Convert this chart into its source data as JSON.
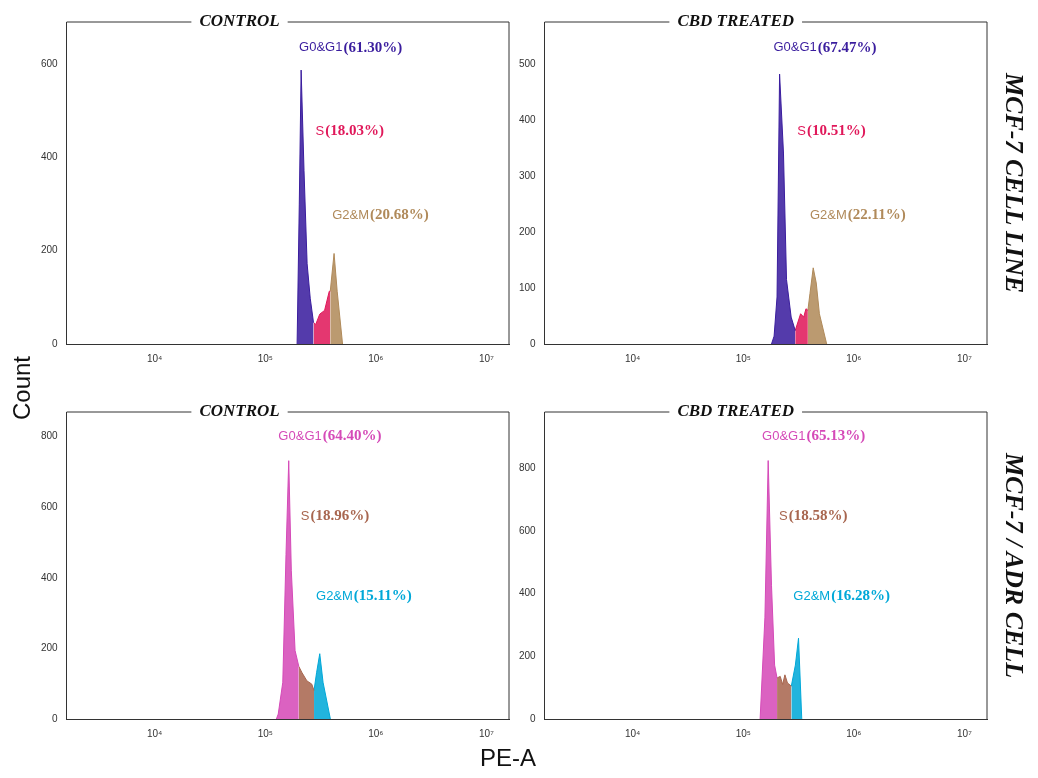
{
  "chart_data": [
    {
      "type": "area",
      "title": "CONTROL",
      "ylabel": "Count",
      "log": "x",
      "xlim": [
        1600,
        16000000
      ],
      "xticks": [
        {
          "value": 10000,
          "label": "10⁴"
        },
        {
          "value": 100000,
          "label": "10⁵"
        },
        {
          "value": 1000000,
          "label": "10⁶"
        },
        {
          "value": 10000000,
          "label": "10⁷"
        }
      ],
      "ylim": [
        0,
        690
      ],
      "yticks": [
        0,
        200,
        400,
        600
      ],
      "series": [
        {
          "name": "G0&G1",
          "color": "#3a1d9e",
          "x": [
            194000,
            203000,
            211000,
            224000,
            239000,
            255000,
            273000
          ],
          "values": [
            0,
            298,
            587,
            372,
            172,
            98,
            46
          ]
        },
        {
          "name": "S",
          "color": "#e0185a",
          "x": [
            273000,
            286000,
            311000,
            344000,
            379000,
            387000
          ],
          "values": [
            46,
            42,
            64,
            72,
            113,
            113
          ]
        },
        {
          "name": "G2&M",
          "color": "#b08a5a",
          "x": [
            387000,
            419000,
            447000,
            500000
          ],
          "values": [
            113,
            194,
            113,
            0
          ]
        }
      ],
      "annotations": [
        "(61.30%)",
        "(18.03%)",
        "(20.68%)"
      ]
    },
    {
      "type": "area",
      "title": "CBD TREATED",
      "y2label": "MCF-7 CELL LINE",
      "log": "x",
      "xlim": [
        1600,
        16000000
      ],
      "xticks": [
        {
          "value": 10000,
          "label": "10⁴"
        },
        {
          "value": 100000,
          "label": "10⁵"
        },
        {
          "value": 1000000,
          "label": "10⁶"
        },
        {
          "value": 10000000,
          "label": "10⁷"
        }
      ],
      "ylim": [
        0,
        575
      ],
      "yticks": [
        0,
        100,
        200,
        300,
        400,
        500
      ],
      "series": [
        {
          "name": "G0&G1",
          "color": "#3a1d9e",
          "x": [
            180000,
            190000,
            202000,
            213000,
            231000,
            246000,
            271000,
            295000
          ],
          "values": [
            0,
            14,
            84,
            482,
            341,
            115,
            48,
            24
          ]
        },
        {
          "name": "S",
          "color": "#e0185a",
          "x": [
            295000,
            330000,
            352000,
            369000,
            384000
          ],
          "values": [
            24,
            54,
            48,
            63,
            60
          ]
        },
        {
          "name": "G2&M",
          "color": "#b08a5a",
          "x": [
            384000,
            401000,
            429000,
            457000,
            488000,
            568000
          ],
          "values": [
            60,
            90,
            136,
            109,
            54,
            0
          ]
        }
      ],
      "annotations": [
        "(67.47%)",
        "(10.51%)",
        "(22.11%)"
      ]
    },
    {
      "type": "area",
      "title": "CONTROL",
      "xlabel": "PE-A",
      "log": "x",
      "xlim": [
        1600,
        16000000
      ],
      "xticks": [
        {
          "value": 10000,
          "label": "10⁴"
        },
        {
          "value": 100000,
          "label": "10⁵"
        },
        {
          "value": 1000000,
          "label": "10⁶"
        },
        {
          "value": 10000000,
          "label": "10⁷"
        }
      ],
      "ylim": [
        0,
        870
      ],
      "yticks": [
        0,
        200,
        400,
        600,
        800
      ],
      "series": [
        {
          "name": "G0&G1",
          "color": "#d54ab8",
          "x": [
            126000,
            131000,
            144000,
            154000,
            163000,
            172000,
            186000,
            201000
          ],
          "values": [
            0,
            14,
            104,
            466,
            732,
            420,
            194,
            149
          ]
        },
        {
          "name": "S",
          "color": "#a8664f",
          "x": [
            201000,
            215000,
            238000,
            263000,
            276000
          ],
          "values": [
            149,
            131,
            108,
            99,
            81
          ]
        },
        {
          "name": "G2&M",
          "color": "#00a8d8",
          "x": [
            276000,
            291000,
            311000,
            333000,
            388000
          ],
          "values": [
            81,
            131,
            185,
            104,
            0
          ]
        }
      ],
      "annotations": [
        "(64.40%)",
        "(18.96%)",
        "(15.11%)"
      ]
    },
    {
      "type": "area",
      "title": "CBD TREATED",
      "y2label": "MCF-7 / ADR CELL",
      "log": "x",
      "xlim": [
        1600,
        16000000
      ],
      "xticks": [
        {
          "value": 10000,
          "label": "10⁴"
        },
        {
          "value": 100000,
          "label": "10⁵"
        },
        {
          "value": 1000000,
          "label": "10⁶"
        },
        {
          "value": 10000000,
          "label": "10⁷"
        }
      ],
      "ylim": [
        0,
        980
      ],
      "yticks": [
        0,
        200,
        400,
        600,
        800
      ],
      "series": [
        {
          "name": "G0&G1",
          "color": "#d54ab8",
          "x": [
            142000,
            157000,
            168000,
            180000,
            192000,
            202000
          ],
          "values": [
            0,
            325,
            825,
            427,
            172,
            131
          ]
        },
        {
          "name": "S",
          "color": "#a8664f",
          "x": [
            202000,
            216000,
            227000,
            238000,
            251000,
            272000
          ],
          "values": [
            131,
            136,
            110,
            141,
            115,
            105
          ]
        },
        {
          "name": "G2&M",
          "color": "#00a8d8",
          "x": [
            272000,
            296000,
            316000,
            338000
          ],
          "values": [
            105,
            172,
            258,
            0
          ]
        }
      ],
      "annotations": [
        "(65.13%)",
        "(18.58%)",
        "(16.28%)"
      ]
    }
  ]
}
